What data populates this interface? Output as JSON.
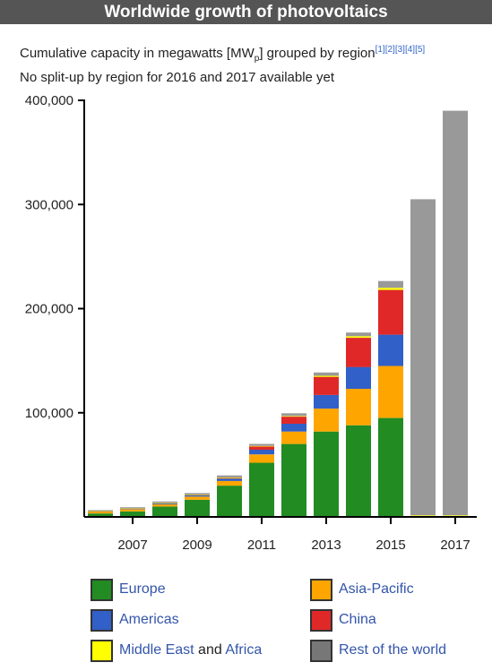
{
  "header": {
    "title": "Worldwide growth of photovoltaics",
    "subtitle_line1_pre": "Cumulative capacity in megawatts [MW",
    "subtitle_line1_sub": "p",
    "subtitle_line1_post": "] grouped by region",
    "refs": [
      "[1]",
      "[2]",
      "[3]",
      "[4]",
      "[5]"
    ],
    "subtitle_line2": "No split-up by region for 2016 and 2017 available yet"
  },
  "legend": {
    "europe": "Europe",
    "asia_pacific": "Asia-Pacific",
    "americas": "Americas",
    "china": "China",
    "middle_east": "Middle East",
    "and": "and",
    "africa": "Africa",
    "rest": "Rest of the world"
  },
  "chart_data": {
    "type": "bar",
    "stacked": true,
    "title": "Worldwide growth of photovoltaics",
    "ylim": [
      0,
      400000
    ],
    "y_ticks": [
      100000,
      200000,
      300000,
      400000
    ],
    "y_tick_labels": [
      "100,000",
      "200,000",
      "300,000",
      "400,000"
    ],
    "categories": [
      2006,
      2007,
      2008,
      2009,
      2010,
      2011,
      2012,
      2013,
      2014,
      2015,
      2016,
      2017
    ],
    "x_tick_labels": [
      {
        "year": 2007,
        "label": "2007"
      },
      {
        "year": 2009,
        "label": "2009"
      },
      {
        "year": 2011,
        "label": "2011"
      },
      {
        "year": 2013,
        "label": "2013"
      },
      {
        "year": 2015,
        "label": "2015"
      },
      {
        "year": 2017,
        "label": "2017"
      }
    ],
    "grid": false,
    "legend_position": "bottom",
    "series": [
      {
        "name": "Europe",
        "color": "#228b22",
        "values": [
          3300,
          5300,
          10000,
          16500,
          30000,
          52000,
          70000,
          82000,
          88000,
          95000,
          0,
          0
        ]
      },
      {
        "name": "Asia-Pacific",
        "color": "#ffa500",
        "values": [
          1500,
          1800,
          2200,
          3000,
          4500,
          8000,
          12000,
          22000,
          35000,
          50000,
          0,
          0
        ]
      },
      {
        "name": "Americas",
        "color": "#3060c8",
        "values": [
          600,
          800,
          1000,
          1500,
          2300,
          4500,
          7500,
          13000,
          21000,
          30000,
          0,
          0
        ]
      },
      {
        "name": "China",
        "color": "#e02828",
        "values": [
          50,
          100,
          200,
          300,
          800,
          3300,
          6800,
          17500,
          28000,
          43000,
          0,
          0
        ]
      },
      {
        "name": "Middle East and Africa",
        "color": "#ffff00",
        "values": [
          50,
          60,
          80,
          100,
          200,
          300,
          500,
          1000,
          1500,
          2000,
          1500,
          1500
        ]
      },
      {
        "name": "Rest of the world",
        "color": "#999999",
        "values": [
          1000,
          1200,
          1300,
          1500,
          2000,
          2000,
          2700,
          3200,
          3500,
          6500,
          303500,
          388500
        ]
      }
    ]
  }
}
